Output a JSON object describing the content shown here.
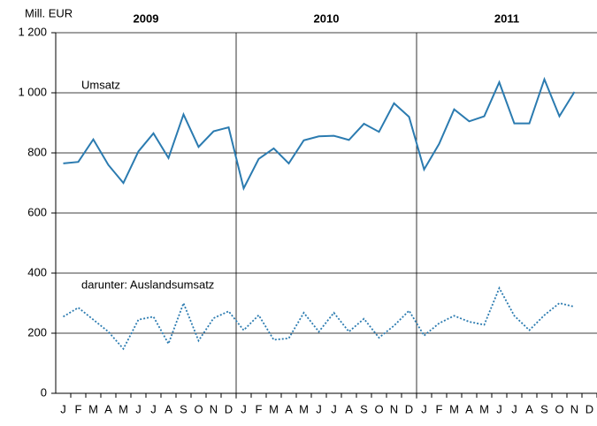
{
  "chart_data": {
    "type": "line",
    "y_unit_label": "Mill. EUR",
    "year_labels": [
      "2009",
      "2010",
      "2011"
    ],
    "categories": [
      "J",
      "F",
      "M",
      "A",
      "M",
      "J",
      "J",
      "A",
      "S",
      "O",
      "N",
      "D",
      "J",
      "F",
      "M",
      "A",
      "M",
      "J",
      "J",
      "A",
      "S",
      "O",
      "N",
      "D",
      "J",
      "F",
      "M",
      "A",
      "M",
      "J",
      "J",
      "A",
      "S",
      "O",
      "N",
      "D"
    ],
    "series": [
      {
        "name": "Umsatz",
        "color": "#2b7bb0",
        "dash": "solid",
        "values": [
          765,
          770,
          845,
          760,
          700,
          805,
          865,
          783,
          928,
          820,
          872,
          885,
          682,
          780,
          815,
          765,
          842,
          855,
          857,
          843,
          897,
          870,
          965,
          920,
          745,
          830,
          945,
          905,
          922,
          1035,
          898,
          898,
          1045,
          922,
          1003,
          null
        ]
      },
      {
        "name": "darunter: Auslandsumsatz",
        "color": "#2b7bb0",
        "dash": "dotted",
        "values": [
          255,
          285,
          245,
          205,
          148,
          245,
          255,
          165,
          300,
          175,
          250,
          273,
          210,
          260,
          178,
          183,
          268,
          205,
          268,
          205,
          248,
          185,
          225,
          275,
          192,
          233,
          258,
          238,
          228,
          350,
          258,
          210,
          260,
          300,
          288,
          null
        ]
      }
    ],
    "ylim": [
      0,
      1200
    ],
    "yticks": [
      0,
      200,
      400,
      600,
      800,
      {
        "value": 1000,
        "label": "1 000"
      },
      {
        "value": 1200,
        "label": "1 200"
      }
    ],
    "grid": true
  }
}
